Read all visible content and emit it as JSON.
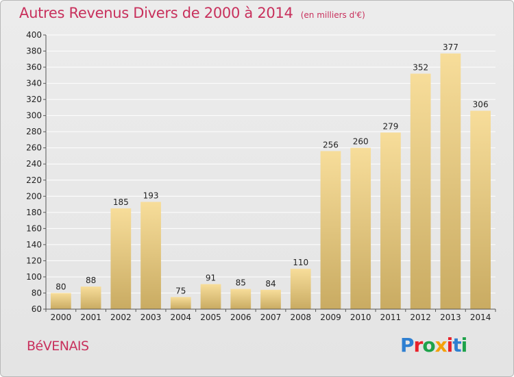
{
  "header": {
    "title": "Autres Revenus Divers de 2000 à 2014",
    "subtitle": "(en milliers d'€)"
  },
  "footer": {
    "commune": "BéVENAIS",
    "logo": "Proxiti",
    "logo_colors": [
      "#2e7fd1",
      "#e8212a",
      "#1ea24a",
      "#f4a10a",
      "#e8212a",
      "#2e7fd1",
      "#1ea24a"
    ]
  },
  "colors": {
    "title": "#c8305c",
    "bar_top": "#f7dd9a",
    "bar_bottom": "#c9ab62",
    "grid": "#ffffff"
  },
  "chart_data": {
    "type": "bar",
    "title": "Autres Revenus Divers de 2000 à 2014",
    "subtitle": "(en milliers d'€)",
    "xlabel": "",
    "ylabel": "",
    "categories": [
      "2000",
      "2001",
      "2002",
      "2003",
      "2004",
      "2005",
      "2006",
      "2007",
      "2008",
      "2009",
      "2010",
      "2011",
      "2012",
      "2013",
      "2014"
    ],
    "values": [
      80,
      88,
      185,
      193,
      75,
      91,
      85,
      84,
      110,
      256,
      260,
      279,
      352,
      377,
      306
    ],
    "ylim": [
      60,
      400
    ],
    "yticks": [
      60,
      80,
      100,
      120,
      140,
      160,
      180,
      200,
      220,
      240,
      260,
      280,
      300,
      320,
      340,
      360,
      380,
      400
    ],
    "grid": true
  }
}
